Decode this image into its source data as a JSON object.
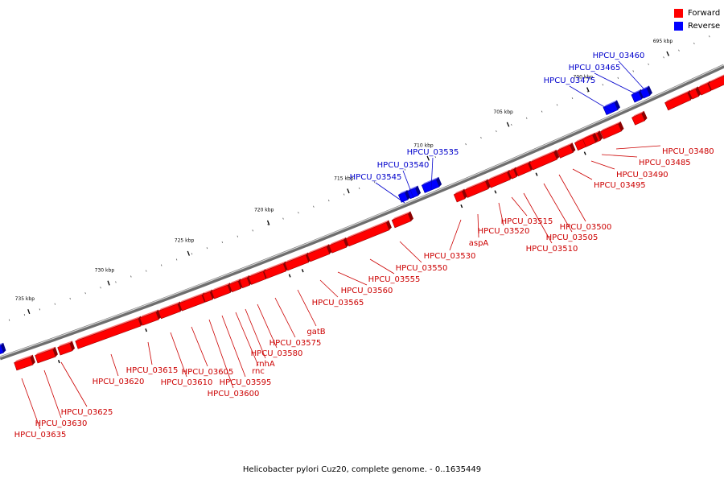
{
  "legend": {
    "items": [
      {
        "label": "Forward",
        "color": "#ff0000"
      },
      {
        "label": "Reverse",
        "color": "#0000ff"
      }
    ]
  },
  "caption": "Helicobacter pylori Cuz20, complete genome. - 0..1635449",
  "colors": {
    "forward": "#ff0000",
    "reverse": "#0000ff",
    "backbone": "#808080"
  },
  "ticks": [
    {
      "label": "695 kbp",
      "kbp": 695
    },
    {
      "label": "700 kbp",
      "kbp": 700
    },
    {
      "label": "705 kbp",
      "kbp": 705
    },
    {
      "label": "710 kbp",
      "kbp": 710
    },
    {
      "label": "715 kbp",
      "kbp": 715
    },
    {
      "label": "720 kbp",
      "kbp": 720
    },
    {
      "label": "725 kbp",
      "kbp": 725
    },
    {
      "label": "730 kbp",
      "kbp": 730
    },
    {
      "label": "735 kbp",
      "kbp": 735
    }
  ],
  "labeled_genes": [
    {
      "name": "HPCU_03460",
      "strand": "reverse"
    },
    {
      "name": "HPCU_03465",
      "strand": "reverse"
    },
    {
      "name": "HPCU_03475",
      "strand": "reverse"
    },
    {
      "name": "HPCU_03480",
      "strand": "forward"
    },
    {
      "name": "HPCU_03485",
      "strand": "forward"
    },
    {
      "name": "HPCU_03490",
      "strand": "forward"
    },
    {
      "name": "HPCU_03495",
      "strand": "forward"
    },
    {
      "name": "HPCU_03500",
      "strand": "forward"
    },
    {
      "name": "HPCU_03505",
      "strand": "forward"
    },
    {
      "name": "HPCU_03510",
      "strand": "forward"
    },
    {
      "name": "HPCU_03515",
      "strand": "forward"
    },
    {
      "name": "HPCU_03520",
      "strand": "forward"
    },
    {
      "name": "aspA",
      "strand": "forward"
    },
    {
      "name": "HPCU_03530",
      "strand": "forward"
    },
    {
      "name": "HPCU_03535",
      "strand": "reverse"
    },
    {
      "name": "HPCU_03540",
      "strand": "reverse"
    },
    {
      "name": "HPCU_03545",
      "strand": "reverse"
    },
    {
      "name": "HPCU_03550",
      "strand": "forward"
    },
    {
      "name": "HPCU_03555",
      "strand": "forward"
    },
    {
      "name": "HPCU_03560",
      "strand": "forward"
    },
    {
      "name": "HPCU_03565",
      "strand": "forward"
    },
    {
      "name": "gatB",
      "strand": "forward"
    },
    {
      "name": "HPCU_03575",
      "strand": "forward"
    },
    {
      "name": "HPCU_03580",
      "strand": "forward"
    },
    {
      "name": "rnhA",
      "strand": "forward"
    },
    {
      "name": "rnc",
      "strand": "forward"
    },
    {
      "name": "HPCU_03595",
      "strand": "forward"
    },
    {
      "name": "HPCU_03600",
      "strand": "forward"
    },
    {
      "name": "HPCU_03605",
      "strand": "forward"
    },
    {
      "name": "HPCU_03610",
      "strand": "forward"
    },
    {
      "name": "HPCU_03615",
      "strand": "forward"
    },
    {
      "name": "HPCU_03620",
      "strand": "forward"
    },
    {
      "name": "HPCU_03625",
      "strand": "forward"
    },
    {
      "name": "HPCU_03630",
      "strand": "forward"
    },
    {
      "name": "HPCU_03635",
      "strand": "forward"
    }
  ]
}
